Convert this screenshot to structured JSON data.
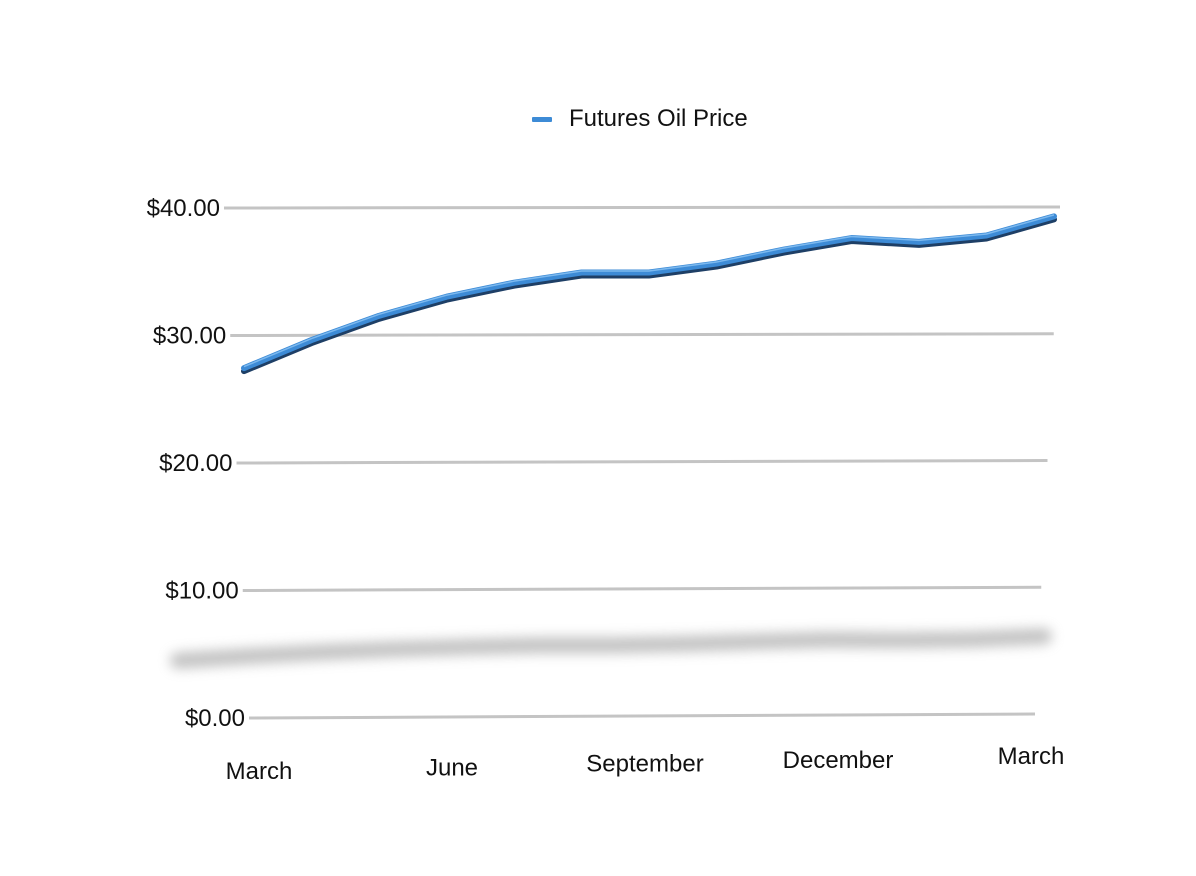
{
  "chart_data": {
    "type": "line",
    "title": "",
    "xlabel": "",
    "ylabel": "",
    "x_tick_labels": [
      "March",
      "June",
      "September",
      "December",
      "March"
    ],
    "x_tick_positions": [
      0,
      3,
      6,
      9,
      12
    ],
    "y_tick_labels": [
      "$0.00",
      "$10.00",
      "$20.00",
      "$30.00",
      "$40.00"
    ],
    "y_tick_values": [
      0,
      10,
      20,
      30,
      40
    ],
    "ylim": [
      0,
      40
    ],
    "grid": true,
    "legend": "top-center",
    "series": [
      {
        "name": "Futures Oil Price",
        "color": "#3d8bd6",
        "values": [
          27.6,
          29.8,
          31.7,
          33.2,
          34.3,
          35.1,
          35.1,
          35.8,
          36.9,
          37.8,
          37.5,
          38.0,
          39.5
        ]
      }
    ]
  }
}
